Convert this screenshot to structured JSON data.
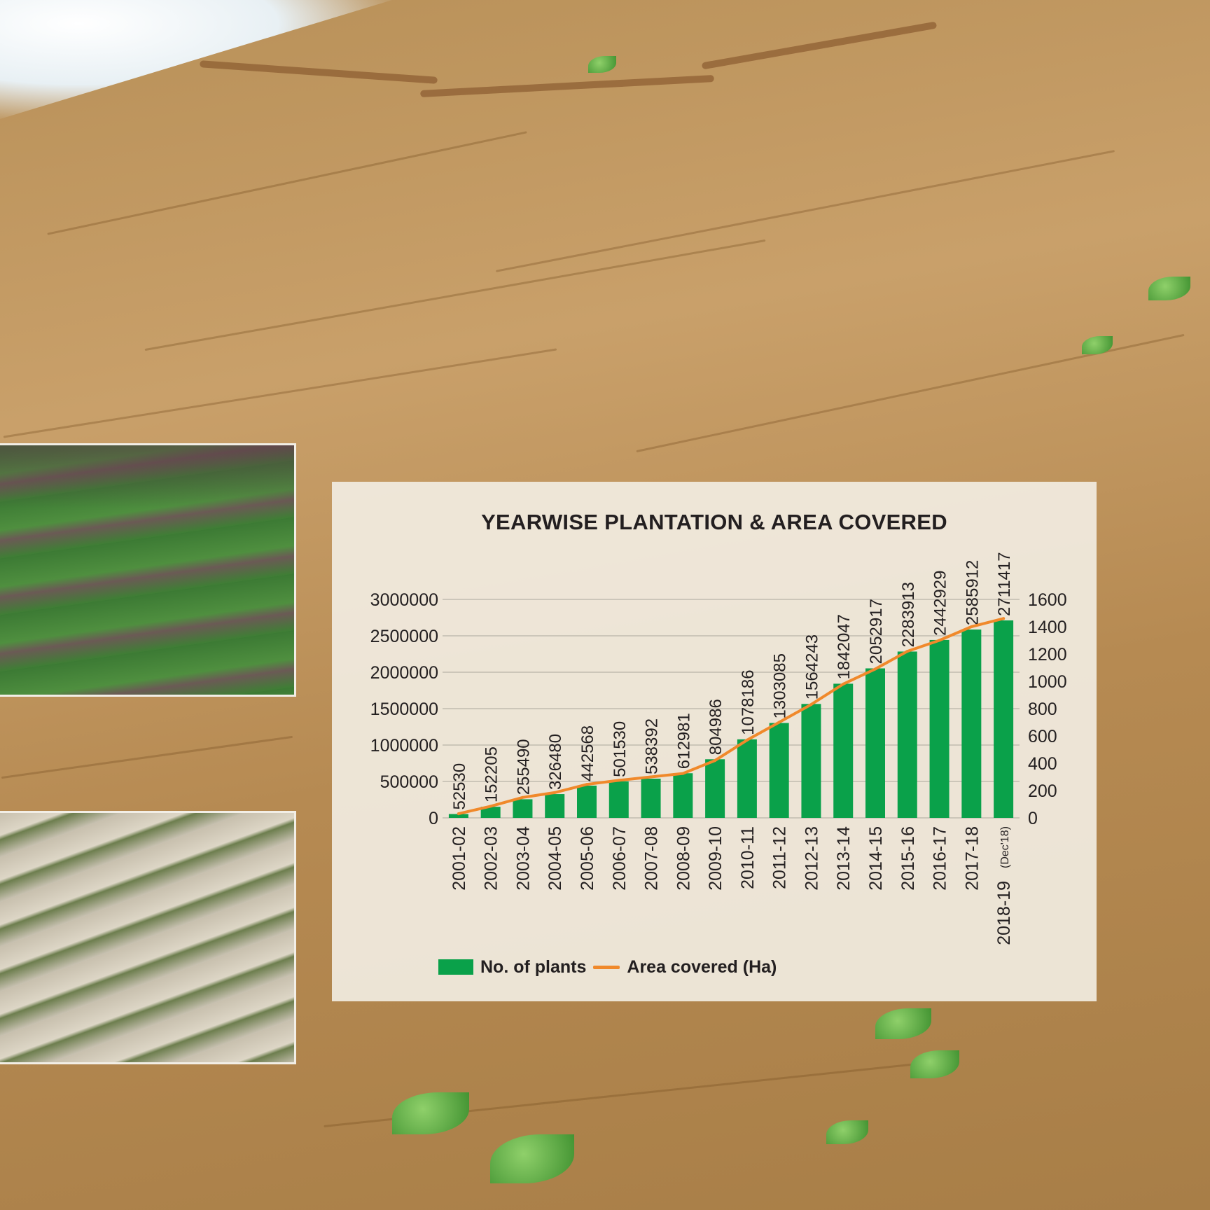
{
  "chart_data": {
    "type": "bar",
    "title": "YEARWISE PLANTATION & AREA COVERED",
    "categories": [
      "2001-02",
      "2002-03",
      "2003-04",
      "2004-05",
      "2005-06",
      "2006-07",
      "2007-08",
      "2008-09",
      "2009-10",
      "2010-11",
      "2011-12",
      "2012-13",
      "2013-14",
      "2014-15",
      "2015-16",
      "2016-17",
      "2017-18",
      "2018-19"
    ],
    "last_category_note": "(Dec'18)",
    "series": [
      {
        "name": "No. of plants",
        "type": "bar",
        "axis": "left",
        "color": "#0aa14a",
        "values": [
          52530,
          152205,
          255490,
          326480,
          442568,
          501530,
          538392,
          612981,
          804986,
          1078186,
          1303085,
          1564243,
          1842047,
          2052917,
          2283913,
          2442929,
          2585912,
          2711417
        ]
      },
      {
        "name": "Area covered (Ha)",
        "type": "line",
        "axis": "right",
        "color": "#f0892b",
        "values": [
          30,
          85,
          150,
          185,
          245,
          275,
          300,
          325,
          420,
          570,
          700,
          830,
          980,
          1090,
          1220,
          1300,
          1400,
          1460
        ]
      }
    ],
    "y_left": {
      "ylim": [
        0,
        3000000
      ],
      "ticks": [
        "0",
        "500000",
        "1000000",
        "1500000",
        "2000000",
        "2500000",
        "3000000"
      ]
    },
    "y_right": {
      "ylim": [
        0,
        1600
      ],
      "ticks": [
        "0",
        "200",
        "400",
        "600",
        "800",
        "1000",
        "1200",
        "1400",
        "1600"
      ]
    },
    "grid": true,
    "legend_position": "bottom-left"
  },
  "legend": {
    "plants_label": "No. of plants",
    "area_label": "Area covered (Ha)"
  }
}
